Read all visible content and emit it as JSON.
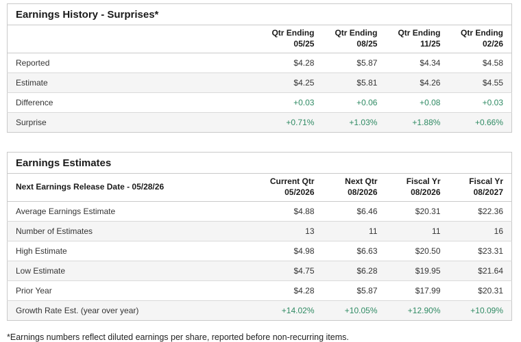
{
  "colors": {
    "positive_value": "#2f8a63",
    "stripe_background": "#f5f5f5",
    "table_border": "#c9c9c9"
  },
  "history": {
    "title": "Earnings History - Surprises*",
    "corner_label": "",
    "columns": [
      "Qtr Ending\n05/25",
      "Qtr Ending\n08/25",
      "Qtr Ending\n11/25",
      "Qtr Ending\n02/26"
    ],
    "rows": [
      {
        "label": "Reported",
        "values": [
          "$4.28",
          "$5.87",
          "$4.34",
          "$4.58"
        ]
      },
      {
        "label": "Estimate",
        "values": [
          "$4.25",
          "$5.81",
          "$4.26",
          "$4.55"
        ]
      },
      {
        "label": "Difference",
        "values": [
          "+0.03",
          "+0.06",
          "+0.08",
          "+0.03"
        ]
      },
      {
        "label": "Surprise",
        "values": [
          "+0.71%",
          "+1.03%",
          "+1.88%",
          "+0.66%"
        ]
      }
    ]
  },
  "estimates": {
    "title": "Earnings Estimates",
    "corner_label": "Next Earnings Release Date - 05/28/26",
    "columns": [
      "Current Qtr\n05/2026",
      "Next Qtr\n08/2026",
      "Fiscal Yr\n08/2026",
      "Fiscal Yr\n08/2027"
    ],
    "rows": [
      {
        "label": "Average Earnings Estimate",
        "values": [
          "$4.88",
          "$6.46",
          "$20.31",
          "$22.36"
        ]
      },
      {
        "label": "Number of Estimates",
        "values": [
          "13",
          "11",
          "11",
          "16"
        ]
      },
      {
        "label": "High Estimate",
        "values": [
          "$4.98",
          "$6.63",
          "$20.50",
          "$23.31"
        ]
      },
      {
        "label": "Low Estimate",
        "values": [
          "$4.75",
          "$6.28",
          "$19.95",
          "$21.64"
        ]
      },
      {
        "label": "Prior Year",
        "values": [
          "$4.28",
          "$5.87",
          "$17.99",
          "$20.31"
        ]
      },
      {
        "label": "Growth Rate Est. (year over year)",
        "values": [
          "+14.02%",
          "+10.05%",
          "+12.90%",
          "+10.09%"
        ]
      }
    ]
  },
  "page": {
    "footnote": "*Earnings numbers reflect diluted earnings per share, reported before non-recurring items."
  }
}
